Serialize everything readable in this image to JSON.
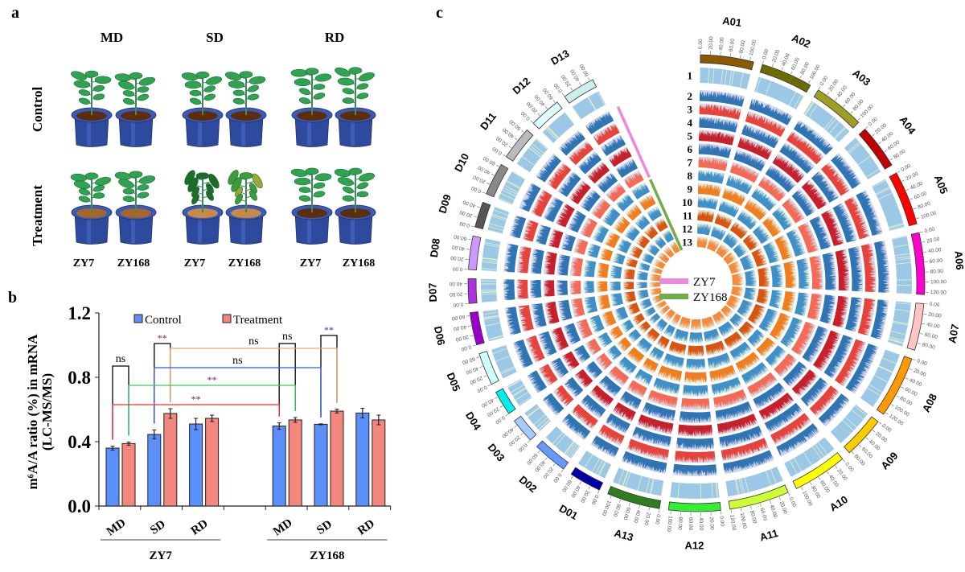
{
  "panel_labels": {
    "a": "a",
    "b": "b",
    "c": "c"
  },
  "panel_a": {
    "columns": [
      "MD",
      "SD",
      "RD"
    ],
    "rows": [
      "Control",
      "Treatment"
    ],
    "genotypes": [
      "ZY7",
      "ZY168",
      "ZY7",
      "ZY168",
      "ZY7",
      "ZY168"
    ]
  },
  "chart_data": [
    {
      "type": "bar",
      "title": "",
      "ylabel_line1": "m⁶A/A ratio (%) in mRNA",
      "ylabel_line2": "(LC-MS/MS)",
      "ylim": [
        0,
        1.2
      ],
      "yticks": [
        {
          "value": 0.0,
          "label": "0.0"
        },
        {
          "value": 0.4,
          "label": "0.4"
        },
        {
          "value": 0.8,
          "label": "0.8"
        },
        {
          "value": 1.2,
          "label": "1.2"
        }
      ],
      "categories": [
        "MD",
        "SD",
        "RD",
        "MD",
        "SD",
        "RD"
      ],
      "groups": [
        {
          "name": "ZY7",
          "category_indices": [
            0,
            1,
            2
          ]
        },
        {
          "name": "ZY168",
          "category_indices": [
            3,
            4,
            5
          ]
        }
      ],
      "series": [
        {
          "name": "Control",
          "color": "#5B8FF9",
          "values": [
            0.36,
            0.445,
            0.51,
            0.497,
            0.508,
            0.578
          ],
          "errors": [
            0.012,
            0.028,
            0.035,
            0.02,
            0.003,
            0.03
          ]
        },
        {
          "name": "Treatment",
          "color": "#F4877D",
          "values": [
            0.388,
            0.575,
            0.545,
            0.535,
            0.59,
            0.535
          ],
          "errors": [
            0.01,
            0.03,
            0.02,
            0.015,
            0.012,
            0.03
          ]
        }
      ],
      "legend": "top",
      "comparisons": [
        {
          "from": [
            0,
            0
          ],
          "to": [
            0,
            1
          ],
          "label": "ns",
          "color": "#000000",
          "label_color": "#000000",
          "y": 0.87
        },
        {
          "from": [
            1,
            0
          ],
          "to": [
            1,
            1
          ],
          "label": "**",
          "color": "#000000",
          "label_color": "#7A1F2B",
          "y": 1.01
        },
        {
          "from": [
            3,
            0
          ],
          "to": [
            3,
            1
          ],
          "label": "ns",
          "color": "#000000",
          "label_color": "#000000",
          "y": 1.01
        },
        {
          "from": [
            4,
            0
          ],
          "to": [
            4,
            1
          ],
          "label": "**",
          "color": "#000000",
          "label_color": "#1F3F8F",
          "y": 1.06
        },
        {
          "from": [
            1,
            1
          ],
          "to": [
            4,
            1
          ],
          "label": "ns",
          "color": "#F4A46A",
          "label_color": "#000000",
          "y": 0.98
        },
        {
          "from": [
            1,
            0
          ],
          "to": [
            4,
            0
          ],
          "label": "ns",
          "color": "#3355EE",
          "label_color": "#000000",
          "y": 0.86
        },
        {
          "from": [
            0,
            1
          ],
          "to": [
            3,
            1
          ],
          "label": "**",
          "color": "#33CC66",
          "label_color": "#7A1F2B",
          "y": 0.75
        },
        {
          "from": [
            0,
            0
          ],
          "to": [
            3,
            0
          ],
          "label": "**",
          "color": "#EE3333",
          "label_color": "#7A1F2B",
          "y": 0.63
        }
      ]
    },
    {
      "type": "circos",
      "tick_step": 20,
      "chromosomes": [
        {
          "name": "A01",
          "length": 108,
          "color": "#8B5A00"
        },
        {
          "name": "A02",
          "length": 105,
          "color": "#6B6B00"
        },
        {
          "name": "A03",
          "length": 104,
          "color": "#9E9E24"
        },
        {
          "name": "A04",
          "length": 90,
          "color": "#C00000"
        },
        {
          "name": "A05",
          "length": 110,
          "color": "#FF0000"
        },
        {
          "name": "A06",
          "length": 125,
          "color": "#FF00CC"
        },
        {
          "name": "A07",
          "length": 95,
          "color": "#FFC4C4"
        },
        {
          "name": "A08",
          "length": 125,
          "color": "#FF9900"
        },
        {
          "name": "A09",
          "length": 85,
          "color": "#FFCC00"
        },
        {
          "name": "A10",
          "length": 110,
          "color": "#FFFF00"
        },
        {
          "name": "A11",
          "length": 122,
          "color": "#CCFF33"
        },
        {
          "name": "A12",
          "length": 105,
          "color": "#33EE33"
        },
        {
          "name": "A13",
          "length": 108,
          "color": "#2E7D1E"
        },
        {
          "name": "D01",
          "length": 65,
          "color": "#0000AA"
        },
        {
          "name": "D02",
          "length": 70,
          "color": "#6699FF"
        },
        {
          "name": "D03",
          "length": 50,
          "color": "#A6CCFF"
        },
        {
          "name": "D04",
          "length": 50,
          "color": "#00EEEE"
        },
        {
          "name": "D05",
          "length": 66,
          "color": "#CCFFFF"
        },
        {
          "name": "D06",
          "length": 66,
          "color": "#9900CC"
        },
        {
          "name": "D07",
          "length": 50,
          "color": "#AA33DD"
        },
        {
          "name": "D08",
          "length": 68,
          "color": "#CC99FF"
        },
        {
          "name": "D09",
          "length": 52,
          "color": "#555555"
        },
        {
          "name": "D10",
          "length": 66,
          "color": "#888888"
        },
        {
          "name": "D11",
          "length": 68,
          "color": "#BBBBBB"
        },
        {
          "name": "D12",
          "length": 64,
          "color": "#DDFFFF"
        },
        {
          "name": "D13",
          "length": 66,
          "color": "#CCEEEE"
        }
      ],
      "tracks": [
        {
          "label": "1",
          "kind": "heatmap",
          "color": "#9CC8E8"
        },
        {
          "label": "2",
          "kind": "histogram",
          "color": "#2F75B5"
        },
        {
          "label": "3",
          "kind": "histogram",
          "color": "#E8433A"
        },
        {
          "label": "4",
          "kind": "histogram",
          "color": "#2F75B5"
        },
        {
          "label": "5",
          "kind": "histogram",
          "color": "#C8202A"
        },
        {
          "label": "6",
          "kind": "histogram",
          "color": "#2F75B5"
        },
        {
          "label": "7",
          "kind": "histogram",
          "color": "#F46A55"
        },
        {
          "label": "8",
          "kind": "histogram",
          "color": "#3F8FC8"
        },
        {
          "label": "9",
          "kind": "histogram",
          "color": "#F07D1E"
        },
        {
          "label": "10",
          "kind": "histogram",
          "color": "#3F8FC8"
        },
        {
          "label": "11",
          "kind": "histogram",
          "color": "#D9540F"
        },
        {
          "label": "12",
          "kind": "histogram",
          "color": "#3F8FC8"
        },
        {
          "label": "13",
          "kind": "histogram",
          "color": "#F58A3C"
        }
      ],
      "legend": [
        {
          "name": "ZY7",
          "color": "#EE88DD",
          "tracks": [
            2,
            7
          ]
        },
        {
          "name": "ZY168",
          "color": "#70AD47",
          "tracks": [
            8,
            13
          ]
        }
      ]
    }
  ]
}
